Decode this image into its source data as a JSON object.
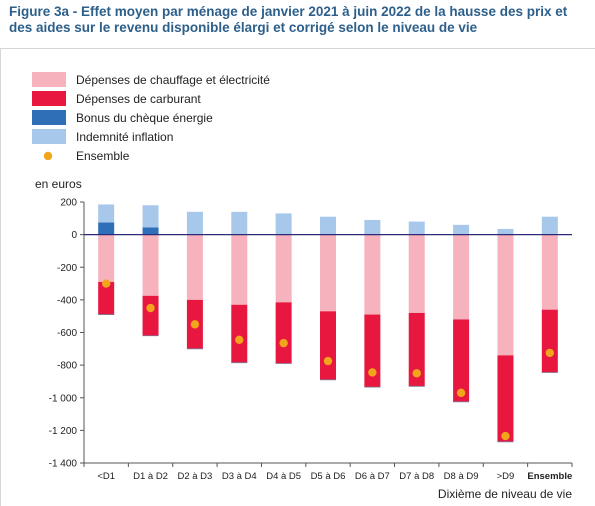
{
  "figure": {
    "title": "Figure 3a - Effet moyen par ménage de janvier 2021 à juin 2022 de la hausse des prix et des aides sur le revenu disponible élargi et corrigé selon le niveau de vie"
  },
  "colors": {
    "chauffage": "#f7b3bd",
    "carburant": "#e8173f",
    "bonus": "#2f6fb8",
    "indemnite": "#a7c8ea",
    "ensemble": "#f2a51c",
    "axis": "#2b2b7a"
  },
  "chart_data": {
    "type": "bar",
    "stacked": true,
    "ylabel": "en euros",
    "xlabel": "Dixième de niveau de vie",
    "ylim": [
      -1400,
      200
    ],
    "yticks": [
      200,
      0,
      -200,
      -400,
      -600,
      -800,
      -1000,
      -1200,
      -1400
    ],
    "ytick_labels": [
      "200",
      "0",
      "-200",
      "-400",
      "-600",
      "-800",
      "-1 000",
      "-1 200",
      "-1 400"
    ],
    "categories": [
      "<D1",
      "D1 à D2",
      "D2 à D3",
      "D3 à D4",
      "D4 à D5",
      "D5 à D6",
      "D6 à D7",
      "D7 à D8",
      "D8 à D9",
      ">D9",
      "Ensemble"
    ],
    "legend_position": "top-left",
    "series": [
      {
        "name": "Dépenses de chauffage et électricité",
        "key": "chauffage",
        "values": [
          -290,
          -375,
          -400,
          -430,
          -415,
          -470,
          -490,
          -480,
          -520,
          -740,
          -460
        ]
      },
      {
        "name": "Dépenses de carburant",
        "key": "carburant",
        "values": [
          -200,
          -245,
          -300,
          -355,
          -375,
          -420,
          -445,
          -450,
          -505,
          -530,
          -385
        ]
      },
      {
        "name": "Bonus du chèque énergie",
        "key": "bonus",
        "values": [
          75,
          45,
          0,
          0,
          0,
          0,
          0,
          0,
          0,
          0,
          0
        ]
      },
      {
        "name": "Indemnité inflation",
        "key": "indemnite",
        "values": [
          110,
          135,
          140,
          140,
          130,
          110,
          90,
          80,
          60,
          35,
          110
        ]
      },
      {
        "name": "Ensemble",
        "key": "ensemble",
        "type": "scatter",
        "values": [
          -300,
          -450,
          -550,
          -645,
          -665,
          -775,
          -845,
          -850,
          -970,
          -1235,
          -725
        ]
      }
    ]
  }
}
